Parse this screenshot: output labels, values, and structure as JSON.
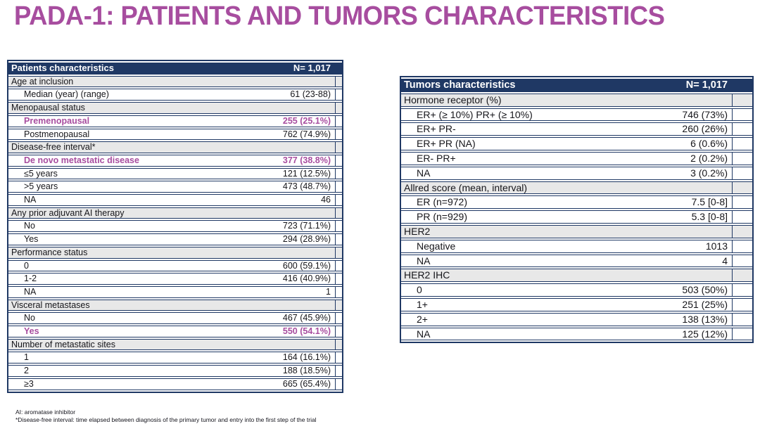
{
  "title": "PADA-1: PATIENTS AND TUMORS CHARACTERISTICS",
  "colors": {
    "accent_purple": "#A74D9F",
    "header_navy": "#1F3864",
    "section_gray": "#E8E8E8",
    "row_text": "#15151A"
  },
  "patients_table": {
    "header": {
      "label": "Patients characteristics",
      "value": "N= 1,017"
    },
    "rows": [
      {
        "type": "section",
        "label": "Age at inclusion",
        "value": ""
      },
      {
        "type": "data",
        "label": "Median (year) (range)",
        "value": "61 (23-88)"
      },
      {
        "type": "section",
        "label": "Menopausal status",
        "value": ""
      },
      {
        "type": "data",
        "label": "Premenopausal",
        "value": "255 (25.1%)",
        "highlight": true
      },
      {
        "type": "data",
        "label": "Postmenopausal",
        "value": "762 (74.9%)"
      },
      {
        "type": "section",
        "label": "Disease-free interval*",
        "value": ""
      },
      {
        "type": "data",
        "label": "De novo metastatic disease",
        "value": "377 (38.8%)",
        "highlight": true
      },
      {
        "type": "data",
        "label": "≤5 years",
        "value": "121 (12.5%)"
      },
      {
        "type": "data",
        "label": ">5 years",
        "value": "473 (48.7%)"
      },
      {
        "type": "data",
        "label": "NA",
        "value": "46"
      },
      {
        "type": "section",
        "label": "Any prior adjuvant AI therapy",
        "value": ""
      },
      {
        "type": "data",
        "label": "No",
        "value": "723 (71.1%)"
      },
      {
        "type": "data",
        "label": "Yes",
        "value": "294 (28.9%)"
      },
      {
        "type": "section",
        "label": "Performance status",
        "value": ""
      },
      {
        "type": "data",
        "label": "0",
        "value": "600 (59.1%)"
      },
      {
        "type": "data",
        "label": "1-2",
        "value": "416 (40.9%)"
      },
      {
        "type": "data",
        "label": "NA",
        "value": "1"
      },
      {
        "type": "section",
        "label": "Visceral metastases",
        "value": ""
      },
      {
        "type": "data",
        "label": "No",
        "value": "467 (45.9%)"
      },
      {
        "type": "data",
        "label": "Yes",
        "value": "550 (54.1%)",
        "highlight": true
      },
      {
        "type": "section",
        "label": "Number of metastatic sites",
        "value": ""
      },
      {
        "type": "data",
        "label": "1",
        "value": "164 (16.1%)"
      },
      {
        "type": "data",
        "label": "2",
        "value": "188 (18.5%)"
      },
      {
        "type": "data",
        "label": "≥3",
        "value": "665 (65.4%)"
      }
    ]
  },
  "tumors_table": {
    "header": {
      "label": "Tumors characteristics",
      "value": "N= 1,017"
    },
    "rows": [
      {
        "type": "section",
        "label": "Hormone receptor (%)",
        "value": ""
      },
      {
        "type": "data",
        "label": "ER+ (≥ 10%) PR+ (≥ 10%)",
        "value": "746 (73%)"
      },
      {
        "type": "data",
        "label": "ER+ PR-",
        "value": "260 (26%)"
      },
      {
        "type": "data",
        "label": "ER+ PR (NA)",
        "value": "6 (0.6%)"
      },
      {
        "type": "data",
        "label": "ER- PR+",
        "value": "2 (0.2%)"
      },
      {
        "type": "data",
        "label": "NA",
        "value": "3 (0.2%)"
      },
      {
        "type": "section",
        "label": "Allred score (mean, interval)",
        "value": ""
      },
      {
        "type": "data",
        "label": "ER (n=972)",
        "value": "7.5 [0-8]"
      },
      {
        "type": "data",
        "label": "PR (n=929)",
        "value": "5.3 [0-8]"
      },
      {
        "type": "section",
        "label": "HER2",
        "value": ""
      },
      {
        "type": "data",
        "label": "Negative",
        "value": "1013"
      },
      {
        "type": "data",
        "label": "NA",
        "value": "4"
      },
      {
        "type": "section",
        "label": "HER2 IHC",
        "value": ""
      },
      {
        "type": "data",
        "label": "0",
        "value": "503 (50%)"
      },
      {
        "type": "data",
        "label": "1+",
        "value": "251 (25%)"
      },
      {
        "type": "data",
        "label": "2+",
        "value": "138 (13%)"
      },
      {
        "type": "data",
        "label": "NA",
        "value": "125 (12%)"
      }
    ]
  },
  "footnotes": [
    "AI: aromatase inhibitor",
    "*Disease-free interval: time elapsed between diagnosis of the primary tumor and entry into the first step of the trial"
  ]
}
